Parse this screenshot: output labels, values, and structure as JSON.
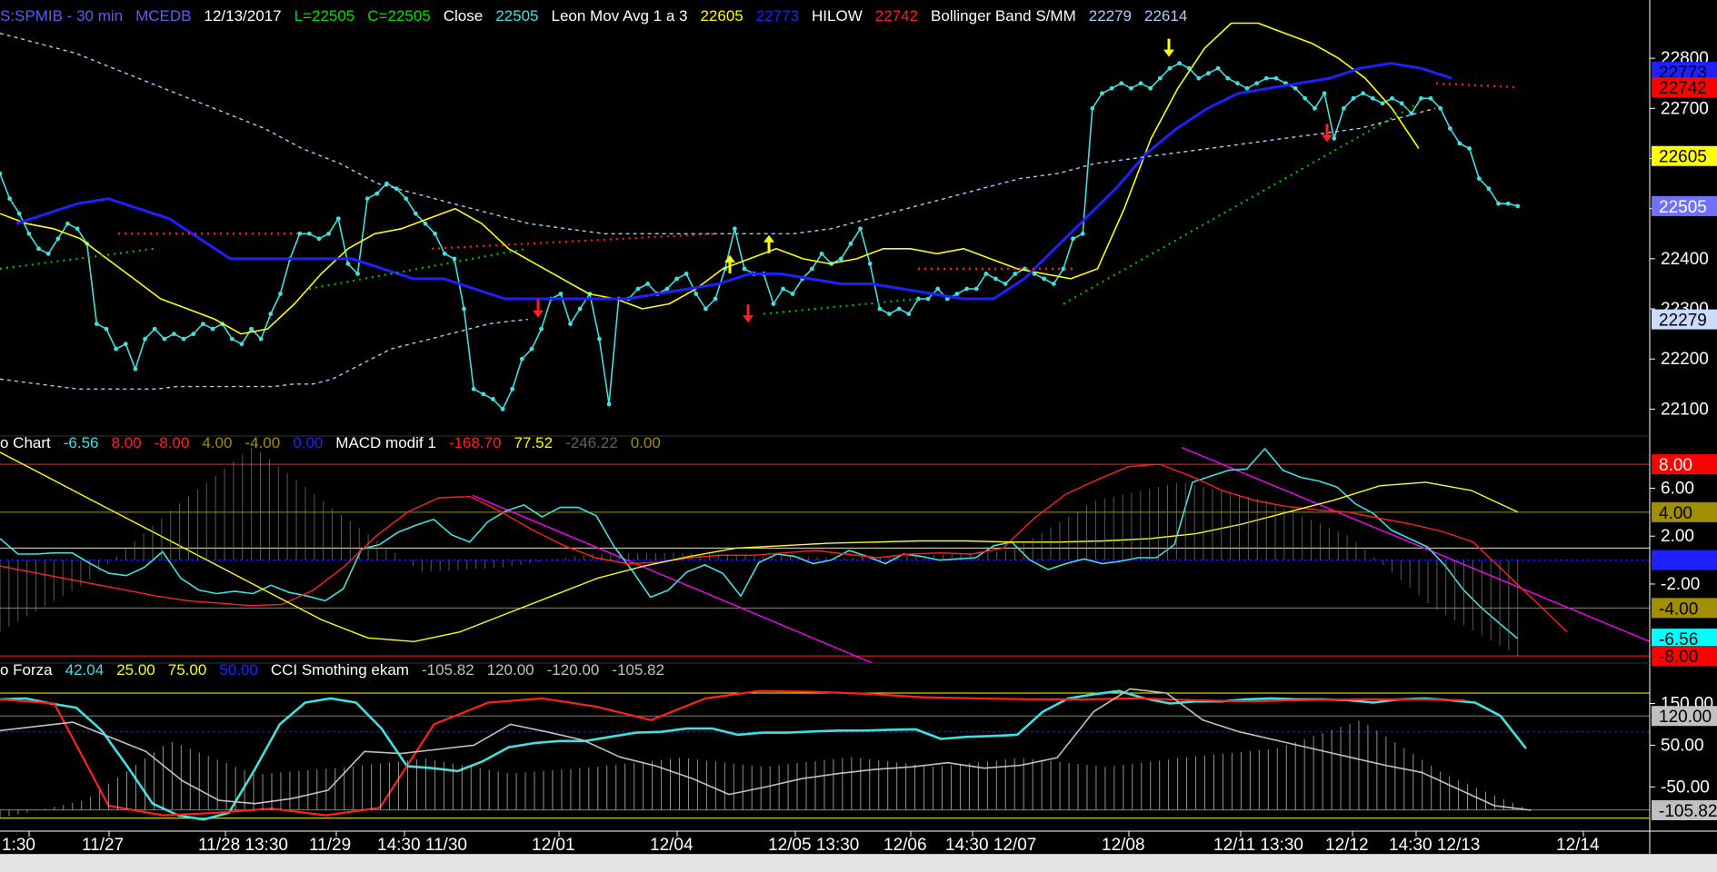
{
  "panel1_header": [
    {
      "text": "S:SPMIB - 30 min",
      "color": "#5b5bff"
    },
    {
      "text": "MCEDB",
      "color": "#5b5bff"
    },
    {
      "text": "12/13/2017",
      "color": "#ffffff"
    },
    {
      "text": "L=22505",
      "color": "#00e000"
    },
    {
      "text": "C=22505",
      "color": "#00e000"
    },
    {
      "text": "Close",
      "color": "#ffffff"
    },
    {
      "text": "22505",
      "color": "#40e0e0"
    },
    {
      "text": "Leon Mov Avg 1 a 3",
      "color": "#ffffff"
    },
    {
      "text": "22605",
      "color": "#ffff00"
    },
    {
      "text": "22773",
      "color": "#2020ff"
    },
    {
      "text": "HILOW",
      "color": "#ffffff"
    },
    {
      "text": "22742",
      "color": "#ff2020"
    },
    {
      "text": "Bollinger Band S/MM",
      "color": "#ffffff"
    },
    {
      "text": "22279",
      "color": "#b0c8ff"
    },
    {
      "text": "22614",
      "color": "#b0c8ff"
    }
  ],
  "panel2_header": [
    {
      "text": "o Chart",
      "color": "#ffffff"
    },
    {
      "text": "-6.56",
      "color": "#40e0e0"
    },
    {
      "text": "8.00",
      "color": "#ff2020"
    },
    {
      "text": "-8.00",
      "color": "#ff2020"
    },
    {
      "text": "4.00",
      "color": "#a09000"
    },
    {
      "text": "-4.00",
      "color": "#a09000"
    },
    {
      "text": "0.00",
      "color": "#2020ff"
    },
    {
      "text": "MACD modif 1",
      "color": "#ffffff"
    },
    {
      "text": "-168.70",
      "color": "#ff2020"
    },
    {
      "text": "77.52",
      "color": "#ffff00"
    },
    {
      "text": "-246.22",
      "color": "#606060"
    },
    {
      "text": "0.00",
      "color": "#a09000"
    }
  ],
  "panel3_header": [
    {
      "text": "o Forza",
      "color": "#ffffff"
    },
    {
      "text": "42.04",
      "color": "#40e0e0"
    },
    {
      "text": "25.00",
      "color": "#ffff00"
    },
    {
      "text": "75.00",
      "color": "#ffff00"
    },
    {
      "text": "50.00",
      "color": "#2020ff"
    },
    {
      "text": "CCI Smothing ekam",
      "color": "#ffffff"
    },
    {
      "text": "-105.82",
      "color": "#c0c0c0"
    },
    {
      "text": "120.00",
      "color": "#c0c0c0"
    },
    {
      "text": "-120.00",
      "color": "#c0c0c0"
    },
    {
      "text": "-105.82",
      "color": "#c0c0c0"
    }
  ],
  "x_labels": [
    "1:30",
    "11/27",
    "11/28 13:30",
    "11/29",
    "14:30 11/30",
    "12/01",
    "12/04",
    "12/05 13:30",
    "12/06",
    "14:30 12/07",
    "12/08",
    "12/11 13:30",
    "12/12",
    "14:30 12/13",
    "12/14"
  ],
  "price_axis": {
    "ticks": [
      "22800",
      "22700",
      "22600",
      "22500",
      "22400",
      "22300",
      "22200",
      "22100"
    ],
    "tags": [
      {
        "text": "22773",
        "value": 22773,
        "bg": "#2020ff",
        "fg": "#000000"
      },
      {
        "text": "22742",
        "value": 22742,
        "bg": "#ff0000",
        "fg": "#000000"
      },
      {
        "text": "22605",
        "value": 22605,
        "bg": "#ffff00",
        "fg": "#000000"
      },
      {
        "text": "22505",
        "value": 22505,
        "bg": "#7070ff",
        "fg": "#ffffff"
      },
      {
        "text": "22279",
        "value": 22279,
        "bg": "#c8dcff",
        "fg": "#000000"
      }
    ]
  },
  "osc_axis": {
    "ticks": [
      "6.00",
      "2.00",
      "-2.00"
    ],
    "tags": [
      {
        "text": "8.00",
        "value": 8,
        "bg": "#ff0000",
        "fg": "#ffffff"
      },
      {
        "text": "4.00",
        "value": 4,
        "bg": "#a09000",
        "fg": "#000000"
      },
      {
        "text": "0.00",
        "value": 0,
        "bg": "#2020ff",
        "fg": "#2020ff"
      },
      {
        "text": "-4.00",
        "value": -4,
        "bg": "#a09000",
        "fg": "#000000"
      },
      {
        "text": "-6.56",
        "value": -6.56,
        "bg": "#00ffff",
        "fg": "#000000"
      },
      {
        "text": "-8.00",
        "value": -8,
        "bg": "#ff0000",
        "fg": "#000000"
      }
    ]
  },
  "cci_axis": {
    "ticks": [
      "150.00",
      "50.00",
      "-50.00"
    ],
    "tags": [
      {
        "text": "120.00",
        "value": 120,
        "bg": "#c0c0c0",
        "fg": "#000000"
      },
      {
        "text": "-105.82",
        "value": -105.82,
        "bg": "#c0c0c0",
        "fg": "#000000"
      }
    ]
  },
  "chart_data": [
    {
      "type": "line",
      "title": "S:SPMIB - 30 min",
      "ylim": [
        22050,
        22880
      ],
      "series": [
        {
          "name": "Close",
          "color": "#40e0e0",
          "values": [
            22570,
            22520,
            22490,
            22450,
            22420,
            22410,
            22440,
            22470,
            22460,
            22430,
            22270,
            22260,
            22220,
            22230,
            22180,
            22240,
            22260,
            22240,
            22250,
            22240,
            22250,
            22270,
            22260,
            22270,
            22240,
            22230,
            22260,
            22240,
            22290,
            22330,
            22400,
            22450,
            22450,
            22440,
            22450,
            22480,
            22390,
            22370,
            22520,
            22530,
            22550,
            22540,
            22520,
            22490,
            22470,
            22450,
            22410,
            22400,
            22300,
            22140,
            22130,
            22120,
            22100,
            22140,
            22200,
            22220,
            22260,
            22320,
            22330,
            22270,
            22300,
            22330,
            22240,
            22110,
            22320,
            22320,
            22340,
            22350,
            22330,
            22340,
            22360,
            22370,
            22330,
            22300,
            22320,
            22380,
            22460,
            22380,
            22370,
            22370,
            22310,
            22340,
            22330,
            22360,
            22380,
            22410,
            22390,
            22400,
            22430,
            22460,
            22390,
            22300,
            22290,
            22300,
            22290,
            22320,
            22320,
            22340,
            22320,
            22330,
            22340,
            22340,
            22370,
            22360,
            22350,
            22370,
            22380,
            22370,
            22360,
            22350,
            22380,
            22440,
            22450,
            22700,
            22730,
            22740,
            22750,
            22740,
            22750,
            22740,
            22760,
            22780,
            22790,
            22780,
            22760,
            22770,
            22780,
            22760,
            22750,
            22740,
            22750,
            22760,
            22760,
            22750,
            22740,
            22720,
            22700,
            22730,
            22640,
            22700,
            22720,
            22730,
            22720,
            22710,
            22720,
            22710,
            22690,
            22720,
            22720,
            22700,
            22660,
            22630,
            22620,
            22560,
            22540,
            22510,
            22510,
            22505
          ]
        },
        {
          "name": "Mov Avg",
          "color": "#ffff00",
          "values": [
            22490,
            22470,
            22460,
            22440,
            22400,
            22360,
            22320,
            22300,
            22280,
            22250,
            22260,
            22310,
            22370,
            22420,
            22450,
            22460,
            22480,
            22500,
            22470,
            22420,
            22390,
            22360,
            22330,
            22320,
            22300,
            22310,
            22340,
            22380,
            22400,
            22420,
            22400,
            22390,
            22400,
            22420,
            22420,
            22410,
            22420,
            22400,
            22380,
            22370,
            22360,
            22380,
            22500,
            22640,
            22740,
            22820,
            22870,
            22870,
            22850,
            22830,
            22800,
            22760,
            22700,
            22620
          ]
        },
        {
          "name": "HILOW",
          "color": "#2020ff",
          "values": [
            22470,
            22490,
            22510,
            22520,
            22500,
            22480,
            22440,
            22400,
            22400,
            22400,
            22400,
            22400,
            22380,
            22360,
            22360,
            22340,
            22320,
            22320,
            22320,
            22320,
            22320,
            22330,
            22340,
            22350,
            22370,
            22370,
            22360,
            22350,
            22350,
            22340,
            22330,
            22320,
            22320,
            22360,
            22420,
            22480,
            22540,
            22610,
            22660,
            22700,
            22730,
            22740,
            22750,
            22760,
            22780,
            22790,
            22780,
            22760
          ]
        },
        {
          "name": "Bollinger Band Upper",
          "color": "#b0c8ff",
          "values": [
            22850,
            22830,
            22810,
            22780,
            22750,
            22720,
            22690,
            22660,
            22620,
            22590,
            22550,
            22530,
            22510,
            22490,
            22470,
            22460,
            22450,
            22450,
            22450,
            22450,
            22450,
            22450,
            22460,
            22480,
            22500,
            22520,
            22540,
            22560,
            22570,
            22590,
            22600,
            22610,
            22620,
            22630,
            22640,
            22650,
            22660,
            22680,
            22700
          ]
        },
        {
          "name": "Bollinger Band Lower",
          "color": "#b0c8ff",
          "values": [
            22160,
            22155,
            22150,
            22145,
            22140,
            22140,
            22140,
            22140,
            22140,
            22145,
            22145,
            22145,
            22145,
            22145,
            22145,
            22150,
            22150,
            22160,
            22180,
            22200,
            22220,
            22230,
            22240,
            22250,
            22260,
            22270,
            22275,
            22279
          ]
        }
      ],
      "annotations": [
        "up-arrow",
        "down-arrow"
      ]
    },
    {
      "type": "line",
      "title": "MACD modif 1",
      "ylim": [
        -8.6,
        9.6
      ],
      "series": [
        {
          "name": "Oscillator",
          "color": "#40e0e0",
          "values": [
            1.8,
            0.5,
            0.5,
            0.6,
            0.6,
            -0.3,
            -1.1,
            -1.3,
            -0.6,
            0.7,
            -1.5,
            -2.5,
            -2.8,
            -2.6,
            -2.8,
            -2.1,
            -2.7,
            -3.0,
            -3.4,
            -2.4,
            0.9,
            1.3,
            2.3,
            2.9,
            3.4,
            2.1,
            1.5,
            3.2,
            4.1,
            4.6,
            3.6,
            4.4,
            4.4,
            3.7,
            1.1,
            -0.9,
            -3.1,
            -2.5,
            -1.0,
            -0.4,
            -1.1,
            -3.0,
            -0.2,
            0.5,
            0.3,
            -0.3,
            0.0,
            0.8,
            0.3,
            -0.3,
            0.5,
            0.3,
            0.0,
            0.1,
            0.2,
            1.2,
            1.5,
            0.0,
            -0.8,
            -0.3,
            0.1,
            -0.3,
            -0.1,
            0.2,
            0.2,
            1.3,
            6.5,
            7.0,
            7.5,
            7.6,
            9.3,
            7.5,
            6.9,
            6.6,
            6.1,
            4.7,
            3.9,
            2.5,
            1.8,
            1.1,
            -0.5,
            -2.5,
            -4.0,
            -5.3,
            -6.56
          ]
        },
        {
          "name": "Signal",
          "color": "#ff2020",
          "values": [
            -0.5,
            -1.0,
            -1.5,
            -2.0,
            -2.5,
            -3.0,
            -3.4,
            -3.6,
            -3.8,
            -3.7,
            -2.5,
            -0.5,
            2.0,
            4.0,
            5.2,
            5.3,
            4.0,
            2.5,
            1.2,
            0.2,
            -0.3,
            -0.2,
            0.2,
            0.4,
            0.4,
            0.6,
            0.8,
            0.5,
            0.2,
            0.5,
            0.6,
            0.5,
            1.0,
            3.5,
            5.5,
            6.7,
            7.8,
            8.0,
            7.0,
            5.8,
            5.0,
            4.5,
            4.2,
            4.0,
            3.5,
            3.0,
            2.4,
            1.5,
            -1.0,
            -3.5,
            -6.0
          ]
        },
        {
          "name": "MACD",
          "color": "#ffff00",
          "values": [
            9.0,
            7.0,
            5.0,
            3.0,
            1.0,
            -1.0,
            -3.0,
            -5.0,
            -6.5,
            -6.8,
            -6.0,
            -4.5,
            -3.0,
            -1.5,
            -0.5,
            0.3,
            1.0,
            1.2,
            1.4,
            1.5,
            1.6,
            1.6,
            1.5,
            1.5,
            1.6,
            1.8,
            2.2,
            3.0,
            4.0,
            5.0,
            6.2,
            6.5,
            5.8,
            4.0
          ]
        },
        {
          "name": "Histogram",
          "color": "#808080",
          "values": [
            -6.0,
            -2.0,
            4.0,
            9.5,
            4.0,
            -1.0,
            -0.6,
            0.5,
            0.6,
            0.4,
            0.2,
            0.4,
            0.8,
            5.0,
            6.5,
            5.0,
            2.0,
            -4.0,
            -8.0
          ]
        }
      ]
    },
    {
      "type": "line",
      "title": "CCI Smothing ekam",
      "ylim": [
        -145,
        225
      ],
      "series": [
        {
          "name": "Forza",
          "color": "#40e0e0",
          "values": [
            160,
            162,
            150,
            140,
            85,
            0,
            -90,
            -118,
            -128,
            -112,
            -10,
            100,
            152,
            162,
            152,
            90,
            0,
            -5,
            -12,
            12,
            45,
            55,
            60,
            60,
            70,
            80,
            82,
            90,
            90,
            75,
            80,
            80,
            83,
            85,
            85,
            87,
            88,
            65,
            70,
            72,
            75,
            130,
            162,
            172,
            180,
            162,
            150,
            155,
            155,
            160,
            162,
            160,
            160,
            158,
            152,
            160,
            162,
            158,
            152,
            120,
            42.04
          ]
        },
        {
          "name": "Smoothing",
          "color": "#ff2020",
          "values": [
            160,
            150,
            -95,
            -118,
            -112,
            -102,
            -118,
            -100,
            100,
            152,
            162,
            142,
            110,
            162,
            180,
            178,
            173,
            165,
            162,
            160,
            160,
            162,
            158,
            155,
            158,
            160,
            160,
            158
          ]
        },
        {
          "name": "CCI",
          "color": "#c0c0c0",
          "values": [
            85,
            95,
            105,
            70,
            35,
            -35,
            -82,
            -90,
            -78,
            -58,
            35,
            30,
            40,
            50,
            100,
            82,
            62,
            22,
            0,
            -30,
            -68,
            -50,
            -30,
            -18,
            -8,
            -2,
            8,
            -5,
            2,
            20,
            130,
            185,
            175,
            110,
            82,
            62,
            42,
            22,
            2,
            -15,
            -55,
            -95,
            -105.82
          ]
        },
        {
          "name": "Histogram",
          "color": "#d0d0d0",
          "values": [
            -125,
            -82,
            60,
            -20,
            -4,
            18,
            -18,
            -2,
            20,
            -2,
            22,
            -2,
            20,
            -2,
            22,
            42,
            110,
            -22,
            -105.82
          ]
        }
      ]
    }
  ]
}
